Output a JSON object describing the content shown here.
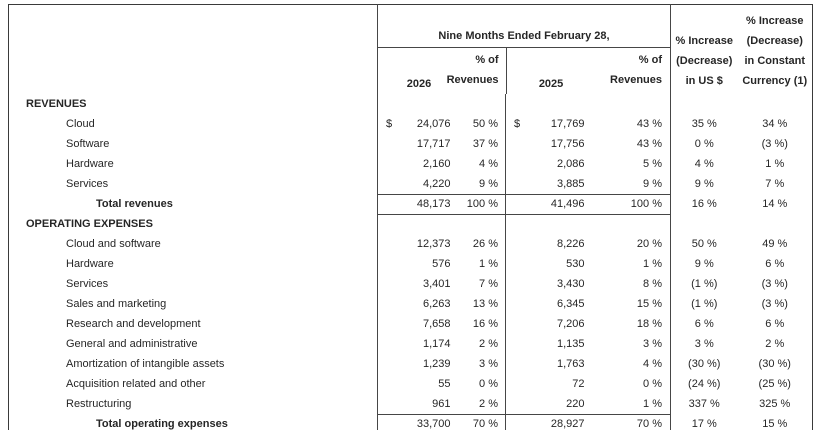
{
  "page": {
    "background": "#ffffff"
  },
  "colors": {
    "border": "#464646",
    "outer_border": "#3a3a3a",
    "bottom_rule": "#161616",
    "text": "#262626"
  },
  "table": {
    "header": {
      "nine_months_title": "Nine Months Ended February 28,",
      "year_2026": "2026",
      "year_2025": "2025",
      "pct_of_revenues_2026": {
        "line1": "% of",
        "line2": "Revenues"
      },
      "pct_of_revenues_2025": {
        "line1": "% of",
        "line2": "Revenues"
      },
      "pct_increase_usd": {
        "line1": "% Increase",
        "line2": "(Decrease)",
        "line3": "in US $"
      },
      "pct_increase_constant": {
        "line1": "% Increase",
        "line2": "(Decrease)",
        "line3": "in Constant",
        "line4": "Currency (1)"
      }
    },
    "rows": [
      {
        "type": "section",
        "label": "REVENUES"
      },
      {
        "type": "item",
        "label": "Cloud",
        "dollar": true,
        "v2026": "24,076",
        "p2026": "50 %",
        "v2025": "17,769",
        "p2025": "43 %",
        "usd": "35 %",
        "cc": "34 %"
      },
      {
        "type": "item",
        "label": "Software",
        "v2026": "17,717",
        "p2026": "37 %",
        "v2025": "17,756",
        "p2025": "43 %",
        "usd": "0 %",
        "cc": "(3 %)"
      },
      {
        "type": "item",
        "label": "Hardware",
        "v2026": "2,160",
        "p2026": "4 %",
        "v2025": "2,086",
        "p2025": "5 %",
        "usd": "4 %",
        "cc": "1 %"
      },
      {
        "type": "item",
        "label": "Services",
        "v2026": "4,220",
        "p2026": "9 %",
        "v2025": "3,885",
        "p2025": "9 %",
        "usd": "9 %",
        "cc": "7 %"
      },
      {
        "type": "total",
        "rule": "both",
        "label": "Total revenues",
        "v2026": "48,173",
        "p2026": "100 %",
        "v2025": "41,496",
        "p2025": "100 %",
        "usd": "16 %",
        "cc": "14 %"
      },
      {
        "type": "section",
        "label": "OPERATING EXPENSES"
      },
      {
        "type": "item",
        "label": "Cloud and software",
        "v2026": "12,373",
        "p2026": "26 %",
        "v2025": "8,226",
        "p2025": "20 %",
        "usd": "50 %",
        "cc": "49 %"
      },
      {
        "type": "item",
        "label": "Hardware",
        "v2026": "576",
        "p2026": "1 %",
        "v2025": "530",
        "p2025": "1 %",
        "usd": "9 %",
        "cc": "6 %"
      },
      {
        "type": "item",
        "label": "Services",
        "v2026": "3,401",
        "p2026": "7 %",
        "v2025": "3,430",
        "p2025": "8 %",
        "usd": "(1 %)",
        "cc": "(3 %)"
      },
      {
        "type": "item",
        "label": "Sales and marketing",
        "v2026": "6,263",
        "p2026": "13 %",
        "v2025": "6,345",
        "p2025": "15 %",
        "usd": "(1 %)",
        "cc": "(3 %)"
      },
      {
        "type": "item",
        "label": "Research and development",
        "v2026": "7,658",
        "p2026": "16 %",
        "v2025": "7,206",
        "p2025": "18 %",
        "usd": "6 %",
        "cc": "6 %"
      },
      {
        "type": "item",
        "label": "General and administrative",
        "v2026": "1,174",
        "p2026": "2 %",
        "v2025": "1,135",
        "p2025": "3 %",
        "usd": "3 %",
        "cc": "2 %"
      },
      {
        "type": "item",
        "label": "Amortization of intangible assets",
        "v2026": "1,239",
        "p2026": "3 %",
        "v2025": "1,763",
        "p2025": "4 %",
        "usd": "(30 %)",
        "cc": "(30 %)"
      },
      {
        "type": "item",
        "label": "Acquisition related and other",
        "v2026": "55",
        "p2026": "0 %",
        "v2025": "72",
        "p2025": "0 %",
        "usd": "(24 %)",
        "cc": "(25 %)"
      },
      {
        "type": "item",
        "label": "Restructuring",
        "v2026": "961",
        "p2026": "2 %",
        "v2025": "220",
        "p2025": "1 %",
        "usd": "337 %",
        "cc": "325 %"
      },
      {
        "type": "total",
        "rule": "top",
        "label": "Total operating expenses",
        "v2026": "33,700",
        "p2026": "70 %",
        "v2025": "28,927",
        "p2025": "70 %",
        "usd": "17 %",
        "cc": "15 %"
      }
    ]
  }
}
